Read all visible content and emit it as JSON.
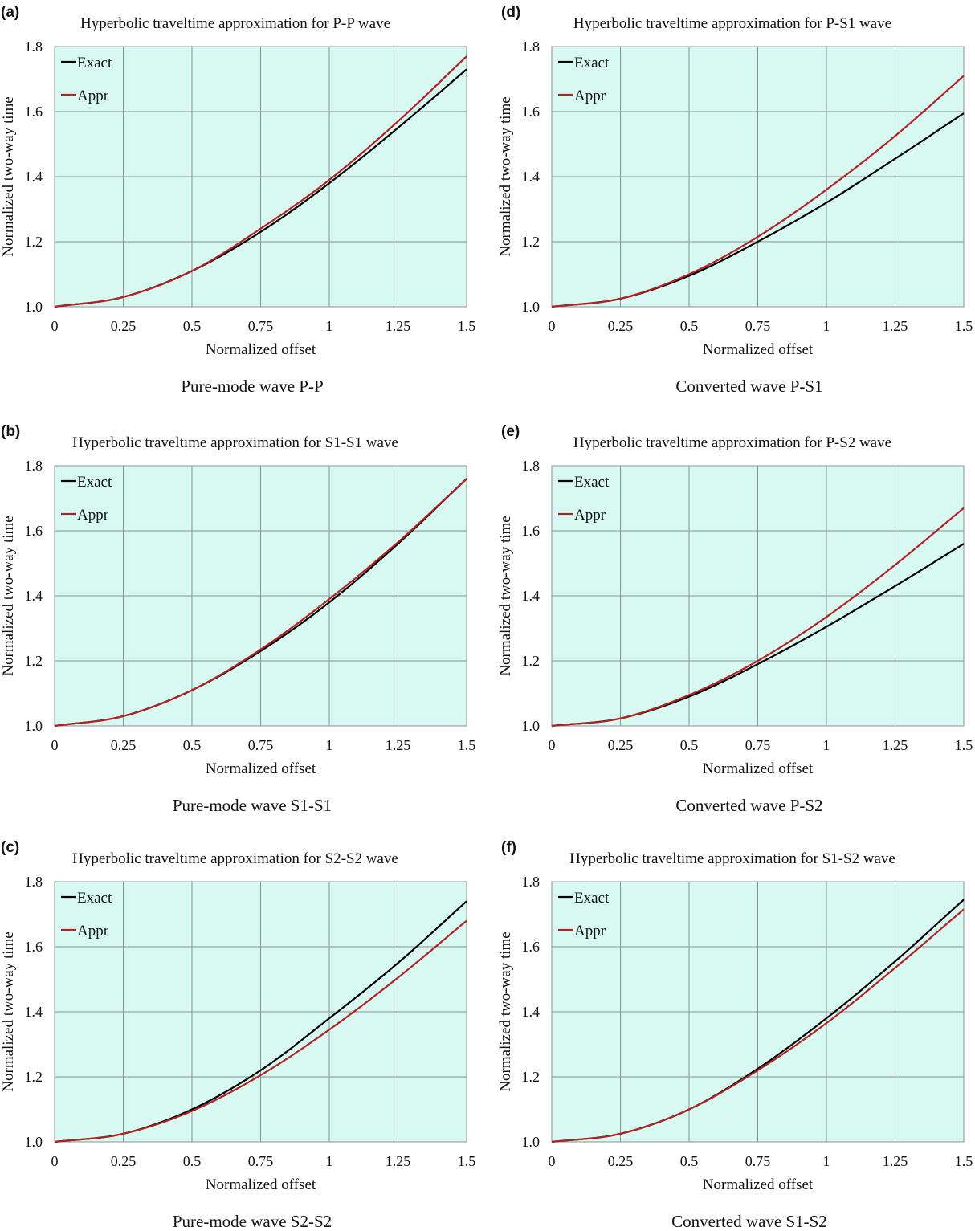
{
  "colors": {
    "plot_bg": "#d8f8f2",
    "grid": "#8a9492",
    "exact": "#000000",
    "appr": "#b22222"
  },
  "chart_data": [
    {
      "panel": "(a)",
      "type": "line",
      "title": "Hyperbolic traveltime approximation for P-P wave",
      "caption": "Pure-mode wave P-P",
      "xlabel": "Normalized offset",
      "ylabel": "Normalized two-way time",
      "xlim": [
        0,
        1.5
      ],
      "ylim": [
        1.0,
        1.8
      ],
      "xticks": [
        "0",
        "0.25",
        "0.5",
        "0.75",
        "1",
        "1.25",
        "1.5"
      ],
      "yticks": [
        "1.0",
        "1.2",
        "1.4",
        "1.6",
        "1.8"
      ],
      "grid": true,
      "legend_position": "top-left",
      "x": [
        0,
        0.25,
        0.5,
        0.75,
        1.0,
        1.25,
        1.5
      ],
      "series": [
        {
          "name": "Exact",
          "color": "#000000",
          "values": [
            1.0,
            1.03,
            1.11,
            1.23,
            1.38,
            1.55,
            1.73
          ]
        },
        {
          "name": "Appr",
          "color": "#b22222",
          "values": [
            1.0,
            1.03,
            1.11,
            1.24,
            1.39,
            1.57,
            1.77
          ]
        }
      ]
    },
    {
      "panel": "(b)",
      "type": "line",
      "title": "Hyperbolic traveltime approximation for S1-S1 wave",
      "caption": "Pure-mode wave S1-S1",
      "xlabel": "Normalized offset",
      "ylabel": "Normalized two-way time",
      "xlim": [
        0,
        1.5
      ],
      "ylim": [
        1.0,
        1.8
      ],
      "xticks": [
        "0",
        "0.25",
        "0.5",
        "0.75",
        "1",
        "1.25",
        "1.5"
      ],
      "yticks": [
        "1.0",
        "1.2",
        "1.4",
        "1.6",
        "1.8"
      ],
      "grid": true,
      "legend_position": "top-left",
      "x": [
        0,
        0.25,
        0.5,
        0.75,
        1.0,
        1.25,
        1.5
      ],
      "series": [
        {
          "name": "Exact",
          "color": "#000000",
          "values": [
            1.0,
            1.03,
            1.11,
            1.23,
            1.38,
            1.56,
            1.76
          ]
        },
        {
          "name": "Appr",
          "color": "#b22222",
          "values": [
            1.0,
            1.03,
            1.11,
            1.235,
            1.39,
            1.565,
            1.76
          ]
        }
      ]
    },
    {
      "panel": "(c)",
      "type": "line",
      "title": "Hyperbolic traveltime approximation for S2-S2 wave",
      "caption": "Pure-mode wave S2-S2",
      "xlabel": "Normalized offset",
      "ylabel": "Normalized two-way time",
      "xlim": [
        0,
        1.5
      ],
      "ylim": [
        1.0,
        1.8
      ],
      "xticks": [
        "0",
        "0.25",
        "0.5",
        "0.75",
        "1",
        "1.25",
        "1.5"
      ],
      "yticks": [
        "1.0",
        "1.2",
        "1.4",
        "1.6",
        "1.8"
      ],
      "grid": true,
      "legend_position": "top-left",
      "x": [
        0,
        0.25,
        0.5,
        0.75,
        1.0,
        1.25,
        1.5
      ],
      "series": [
        {
          "name": "Exact",
          "color": "#000000",
          "values": [
            1.0,
            1.025,
            1.1,
            1.22,
            1.38,
            1.55,
            1.74
          ]
        },
        {
          "name": "Appr",
          "color": "#b22222",
          "values": [
            1.0,
            1.025,
            1.095,
            1.205,
            1.345,
            1.505,
            1.68
          ]
        }
      ]
    },
    {
      "panel": "(d)",
      "type": "line",
      "title": "Hyperbolic traveltime approximation for P-S1 wave",
      "caption": "Converted wave P-S1",
      "xlabel": "Normalized offset",
      "ylabel": "Normalized two-way time",
      "xlim": [
        0,
        1.5
      ],
      "ylim": [
        1.0,
        1.8
      ],
      "xticks": [
        "0",
        "0.25",
        "0.5",
        "0.75",
        "1",
        "1.25",
        "1.5"
      ],
      "yticks": [
        "1.0",
        "1.2",
        "1.4",
        "1.6",
        "1.8"
      ],
      "grid": true,
      "legend_position": "top-left",
      "x": [
        0,
        0.25,
        0.5,
        0.75,
        1.0,
        1.25,
        1.5
      ],
      "series": [
        {
          "name": "Exact",
          "color": "#000000",
          "values": [
            1.0,
            1.025,
            1.095,
            1.2,
            1.32,
            1.455,
            1.595
          ]
        },
        {
          "name": "Appr",
          "color": "#b22222",
          "values": [
            1.0,
            1.025,
            1.1,
            1.215,
            1.36,
            1.525,
            1.71
          ]
        }
      ]
    },
    {
      "panel": "(e)",
      "type": "line",
      "title": "Hyperbolic traveltime approximation for P-S2 wave",
      "caption": "Converted wave P-S2",
      "xlabel": "Normalized offset",
      "ylabel": "Normalized two-way time",
      "xlim": [
        0,
        1.5
      ],
      "ylim": [
        1.0,
        1.8
      ],
      "xticks": [
        "0",
        "0.25",
        "0.5",
        "0.75",
        "1",
        "1.25",
        "1.5"
      ],
      "yticks": [
        "1.0",
        "1.2",
        "1.4",
        "1.6",
        "1.8"
      ],
      "grid": true,
      "legend_position": "top-left",
      "x": [
        0,
        0.25,
        0.5,
        0.75,
        1.0,
        1.25,
        1.5
      ],
      "series": [
        {
          "name": "Exact",
          "color": "#000000",
          "values": [
            1.0,
            1.023,
            1.09,
            1.19,
            1.305,
            1.43,
            1.56
          ]
        },
        {
          "name": "Appr",
          "color": "#b22222",
          "values": [
            1.0,
            1.023,
            1.095,
            1.2,
            1.335,
            1.495,
            1.67
          ]
        }
      ]
    },
    {
      "panel": "(f)",
      "type": "line",
      "title": "Hyperbolic traveltime approximation for S1-S2 wave",
      "caption": "Converted wave S1-S2",
      "xlabel": "Normalized offset",
      "ylabel": "Normalized two-way time",
      "xlim": [
        0,
        1.5
      ],
      "ylim": [
        1.0,
        1.8
      ],
      "xticks": [
        "0",
        "0.25",
        "0.5",
        "0.75",
        "1",
        "1.25",
        "1.5"
      ],
      "yticks": [
        "1.0",
        "1.2",
        "1.4",
        "1.6",
        "1.8"
      ],
      "grid": true,
      "legend_position": "top-left",
      "x": [
        0,
        0.25,
        0.5,
        0.75,
        1.0,
        1.25,
        1.5
      ],
      "series": [
        {
          "name": "Exact",
          "color": "#000000",
          "values": [
            1.0,
            1.025,
            1.1,
            1.225,
            1.38,
            1.555,
            1.745
          ]
        },
        {
          "name": "Appr",
          "color": "#b22222",
          "values": [
            1.0,
            1.025,
            1.1,
            1.22,
            1.365,
            1.535,
            1.715
          ]
        }
      ]
    }
  ]
}
